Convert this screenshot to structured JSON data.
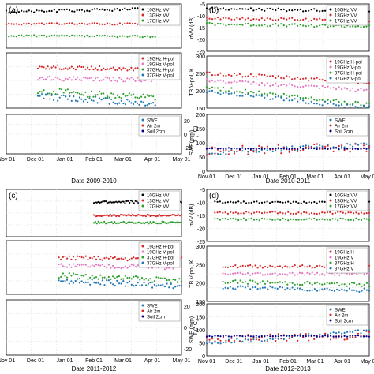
{
  "figure": {
    "panels_order": [
      "a",
      "b",
      "c",
      "d"
    ]
  },
  "chart_data": [
    {
      "id": "a",
      "type": "scatter",
      "panel_label": "(a)",
      "date_label": "Date 2009-2010",
      "x_ticks": [
        "Nov 01",
        "Dec 01",
        "Jan 01",
        "Feb 01",
        "Mar 01",
        "Apr 01",
        "May 01"
      ],
      "rows": [
        {
          "kind": "backscatter",
          "ylabel": "",
          "yticks": [],
          "ylim": [
            0,
            1
          ],
          "legend": [
            "10GHz VV",
            "13GHz VV",
            "17GHz VV"
          ],
          "colors": [
            "#000000",
            "#d62728",
            "#2ca02c"
          ],
          "series": [
            {
              "name": "10GHz VV",
              "start": 0.0,
              "end": 0.85,
              "level": 0.82,
              "trend": 0.08,
              "noise": 0.03
            },
            {
              "name": "13GHz VV",
              "start": 0.0,
              "end": 0.85,
              "level": 0.55,
              "trend": 0.0,
              "noise": 0.02
            },
            {
              "name": "17GHz VV",
              "start": 0.0,
              "end": 0.85,
              "level": 0.28,
              "trend": -0.02,
              "noise": 0.02
            }
          ]
        },
        {
          "kind": "brightness",
          "ylabel": "",
          "yticks": [],
          "ylim": [
            0,
            1
          ],
          "legend": [
            "19GHz H-pol",
            "19GHz V-pol",
            "37GHz H-pol",
            "37GHz V-pol"
          ],
          "colors": [
            "#d62728",
            "#e377c2",
            "#2ca02c",
            "#1f77b4"
          ],
          "series": [
            {
              "name": "19GHz H-pol",
              "start": 0.18,
              "end": 0.85,
              "level": 0.75,
              "trend": -0.05,
              "noise": 0.04
            },
            {
              "name": "19GHz V-pol",
              "start": 0.18,
              "end": 0.85,
              "level": 0.55,
              "trend": -0.05,
              "noise": 0.04
            },
            {
              "name": "37GHz H-pol",
              "start": 0.18,
              "end": 0.85,
              "level": 0.35,
              "trend": -0.2,
              "noise": 0.06
            },
            {
              "name": "37GHz V-pol",
              "start": 0.18,
              "end": 0.85,
              "level": 0.25,
              "trend": -0.2,
              "noise": 0.06
            }
          ]
        },
        {
          "kind": "swe",
          "ylabel": "",
          "yticks": [],
          "y2label": "T (° C)",
          "y2ticks": [
            "20",
            "0",
            "-20"
          ],
          "ylim": [
            0,
            1
          ],
          "legend": [
            "SWE",
            "Air 2m",
            "Soil 2cm"
          ],
          "colors": [
            "#1f77b4",
            "#d62728",
            "#00008b"
          ],
          "series": []
        }
      ]
    },
    {
      "id": "b",
      "type": "scatter",
      "panel_label": "(b)",
      "date_label": "Date 2010-2011",
      "x_ticks": [
        "Nov 01",
        "Dec 01",
        "Jan 01",
        "Feb 01",
        "Mar 01",
        "Apr 01",
        "May 01"
      ],
      "rows": [
        {
          "kind": "backscatter",
          "ylabel": "σVV (dB)",
          "yticks": [
            "-5",
            "-10",
            "-15",
            "-20",
            "-25"
          ],
          "ylim": [
            -25,
            -5
          ],
          "legend": [
            "10GHz VV",
            "13GHz VV",
            "17GHz VV"
          ],
          "colors": [
            "#000000",
            "#d62728",
            "#2ca02c"
          ],
          "series": [
            {
              "name": "10GHz VV",
              "start": 0.0,
              "end": 1.0,
              "level": -7,
              "trend": -1,
              "noise": 0.6
            },
            {
              "name": "13GHz VV",
              "start": 0.0,
              "end": 1.0,
              "level": -11,
              "trend": -1,
              "noise": 0.6
            },
            {
              "name": "17GHz VV",
              "start": 0.0,
              "end": 1.0,
              "level": -13.5,
              "trend": -1,
              "noise": 0.6
            }
          ]
        },
        {
          "kind": "brightness",
          "ylabel": "TB V-pol, K",
          "yticks": [
            "300",
            "250",
            "200",
            "150"
          ],
          "ylim": [
            150,
            300
          ],
          "legend": [
            "19GHz H-pol",
            "19GHz V-pol",
            "37GHz H-pol",
            "37GHz V-pol"
          ],
          "colors": [
            "#d62728",
            "#e377c2",
            "#2ca02c",
            "#1f77b4"
          ],
          "series": [
            {
              "name": "19GHz H-pol",
              "start": 0.0,
              "end": 1.0,
              "level": 250,
              "trend": -25,
              "noise": 5
            },
            {
              "name": "19GHz V-pol",
              "start": 0.0,
              "end": 1.0,
              "level": 230,
              "trend": -30,
              "noise": 5
            },
            {
              "name": "37GHz H-pol",
              "start": 0.0,
              "end": 1.0,
              "level": 210,
              "trend": -50,
              "noise": 6
            },
            {
              "name": "37GHz V-pol",
              "start": 0.0,
              "end": 1.0,
              "level": 200,
              "trend": -50,
              "noise": 6
            }
          ]
        },
        {
          "kind": "swe",
          "ylabel": "SWE(mm)",
          "yticks": [
            "200",
            "150",
            "100",
            "50",
            "0"
          ],
          "ylim": [
            0,
            250
          ],
          "legend": [
            "SWE",
            "Air 2m",
            "Soil 2cm"
          ],
          "colors": [
            "#1f77b4",
            "#d62728",
            "#00008b"
          ],
          "series": [
            {
              "name": "SWE",
              "start": 0.0,
              "end": 1.0,
              "level": 80,
              "trend": 40,
              "noise": 10
            },
            {
              "name": "Air 2m",
              "start": 0.0,
              "end": 1.0,
              "level": 90,
              "trend": 15,
              "noise": 20
            },
            {
              "name": "Soil 2cm",
              "start": 0.0,
              "end": 1.0,
              "level": 100,
              "trend": 0,
              "noise": 3
            }
          ]
        }
      ]
    },
    {
      "id": "c",
      "type": "scatter",
      "panel_label": "(c)",
      "date_label": "Date 2011-2012",
      "x_ticks": [
        "Nov 01",
        "Dec 01",
        "Jan 01",
        "Feb 01",
        "Mar 01",
        "Apr 01",
        "May 01"
      ],
      "rows": [
        {
          "kind": "backscatter",
          "ylabel": "",
          "yticks": [],
          "ylim": [
            0,
            1
          ],
          "legend": [
            "10GHz VV",
            "13GHz VV",
            "17GHz VV"
          ],
          "colors": [
            "#000000",
            "#d62728",
            "#2ca02c"
          ],
          "series": [
            {
              "name": "10GHz VV",
              "start": 0.5,
              "end": 1.0,
              "level": 0.7,
              "trend": 0.05,
              "noise": 0.03
            },
            {
              "name": "13GHz VV",
              "start": 0.5,
              "end": 1.0,
              "level": 0.45,
              "trend": 0.0,
              "noise": 0.02
            },
            {
              "name": "17GHz VV",
              "start": 0.5,
              "end": 1.0,
              "level": 0.3,
              "trend": 0.0,
              "noise": 0.02
            }
          ]
        },
        {
          "kind": "brightness",
          "ylabel": "",
          "yticks": [],
          "ylim": [
            0,
            1
          ],
          "legend": [
            "19GHz H-pol",
            "19GHz V-pol",
            "37GHz H-pol",
            "37GHz V-pol"
          ],
          "colors": [
            "#d62728",
            "#e377c2",
            "#2ca02c",
            "#1f77b4"
          ],
          "series": [
            {
              "name": "19GHz H-pol",
              "start": 0.3,
              "end": 1.0,
              "level": 0.7,
              "trend": -0.05,
              "noise": 0.04
            },
            {
              "name": "19GHz V-pol",
              "start": 0.3,
              "end": 1.0,
              "level": 0.55,
              "trend": -0.05,
              "noise": 0.04
            },
            {
              "name": "37GHz H-pol",
              "start": 0.3,
              "end": 1.0,
              "level": 0.4,
              "trend": -0.15,
              "noise": 0.05
            },
            {
              "name": "37GHz V-pol",
              "start": 0.3,
              "end": 1.0,
              "level": 0.3,
              "trend": -0.15,
              "noise": 0.05
            }
          ]
        },
        {
          "kind": "swe",
          "ylabel": "",
          "yticks": [],
          "y2label": "T (° C)",
          "y2ticks": [
            "20",
            "0",
            "-20"
          ],
          "ylim": [
            0,
            1
          ],
          "legend": [
            "SWE",
            "Air 2m",
            "Soil 2cm"
          ],
          "colors": [
            "#1f77b4",
            "#d62728",
            "#00008b"
          ],
          "series": []
        }
      ]
    },
    {
      "id": "d",
      "type": "scatter",
      "panel_label": "(d)",
      "date_label": "Date 2012-2013",
      "x_ticks": [
        "Nov 01",
        "Dec 01",
        "Jan 01",
        "Feb 01",
        "Mar 01",
        "Apr 01",
        "May 01"
      ],
      "rows": [
        {
          "kind": "backscatter",
          "ylabel": "σVV (dB)",
          "yticks": [
            "-5",
            "-10",
            "-15",
            "-20",
            "-25"
          ],
          "ylim": [
            -25,
            -5
          ],
          "legend": [
            "10GHz VV",
            "13GHz VV",
            "17GHz VV"
          ],
          "colors": [
            "#000000",
            "#d62728",
            "#2ca02c"
          ],
          "series": [
            {
              "name": "10GHz VV",
              "start": 0.05,
              "end": 1.0,
              "level": -10,
              "trend": 0,
              "noise": 0.4
            },
            {
              "name": "13GHz VV",
              "start": 0.05,
              "end": 1.0,
              "level": -14,
              "trend": 0,
              "noise": 0.4
            },
            {
              "name": "17GHz VV",
              "start": 0.05,
              "end": 1.0,
              "level": -16.5,
              "trend": 0,
              "noise": 0.4
            }
          ]
        },
        {
          "kind": "brightness",
          "ylabel": "TB V-pol, K",
          "yticks": [
            "300",
            "250",
            "200",
            "150"
          ],
          "ylim": [
            150,
            300
          ],
          "legend": [
            "19GHz H",
            "19GHz V",
            "37GHz H",
            "37GHz V"
          ],
          "colors": [
            "#d62728",
            "#e377c2",
            "#2ca02c",
            "#1f77b4"
          ],
          "series": [
            {
              "name": "19GHz H",
              "start": 0.1,
              "end": 1.0,
              "level": 245,
              "trend": 0,
              "noise": 4
            },
            {
              "name": "19GHz V",
              "start": 0.1,
              "end": 1.0,
              "level": 225,
              "trend": 0,
              "noise": 4
            },
            {
              "name": "37GHz H",
              "start": 0.1,
              "end": 1.0,
              "level": 205,
              "trend": -10,
              "noise": 5
            },
            {
              "name": "37GHz V",
              "start": 0.1,
              "end": 1.0,
              "level": 190,
              "trend": -10,
              "noise": 5
            }
          ]
        },
        {
          "kind": "swe",
          "ylabel": "SWE (mm)",
          "yticks": [
            "200",
            "150",
            "100",
            "50",
            "0"
          ],
          "ylim": [
            0,
            250
          ],
          "legend": [
            "SWE",
            "Air 2m",
            "Soil 2cm"
          ],
          "colors": [
            "#1f77b4",
            "#d62728",
            "#00008b"
          ],
          "series": [
            {
              "name": "SWE",
              "start": 0.0,
              "end": 1.0,
              "level": 60,
              "trend": 60,
              "noise": 10
            },
            {
              "name": "Air 2m",
              "start": 0.0,
              "end": 1.0,
              "level": 80,
              "trend": 20,
              "noise": 20
            },
            {
              "name": "Soil 2cm",
              "start": 0.0,
              "end": 1.0,
              "level": 95,
              "trend": 0,
              "noise": 3
            }
          ]
        }
      ]
    }
  ]
}
